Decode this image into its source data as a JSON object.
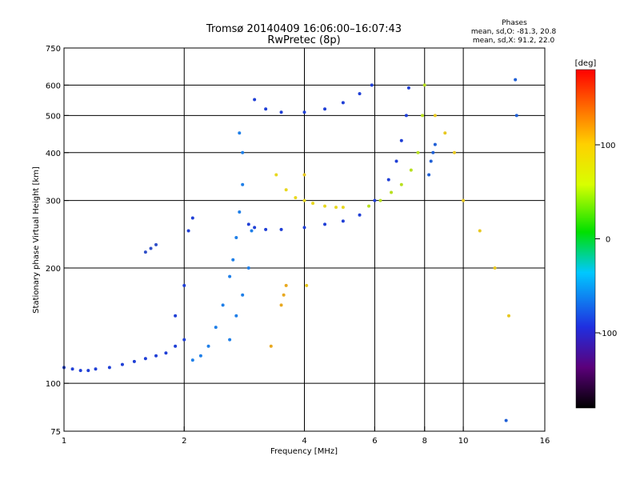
{
  "chart_data": {
    "type": "scatter",
    "title": "Tromsø 20140409 16:06:00–16:07:43",
    "subtitle": "RwPretec (8p)",
    "info": {
      "heading": "Phases",
      "line1": "mean, sd,O: -81.3, 20.8",
      "line2": "mean, sd,X:  91.2, 22.0"
    },
    "xlabel": "Frequency [MHz]",
    "ylabel": "Stationary phase Virtual Height [km]",
    "x_scale": "log",
    "y_scale": "log",
    "xlim": [
      1,
      16
    ],
    "ylim": [
      75,
      750
    ],
    "x_ticks": [
      1,
      2,
      4,
      6,
      8,
      10,
      16
    ],
    "x_tick_labels": [
      "1",
      "2",
      "4",
      "6",
      "8",
      "10",
      "16"
    ],
    "y_ticks": [
      75,
      100,
      200,
      300,
      400,
      500,
      600,
      750
    ],
    "y_tick_labels": [
      "75",
      "100",
      "200",
      "300",
      "400",
      "500",
      "600",
      "750"
    ],
    "grid": true,
    "colorbar": {
      "label": "[deg]",
      "range": [
        -180,
        180
      ],
      "ticks": [
        100,
        0,
        -100
      ],
      "tick_labels": [
        "100",
        "0",
        "-100"
      ]
    },
    "series": [
      {
        "color": "#1f3fd6",
        "phase": -110,
        "x": [
          1.0,
          1.05,
          1.1,
          1.15,
          1.2,
          1.3,
          1.4,
          1.5,
          1.6,
          1.7,
          1.8,
          1.9,
          2.0,
          1.9,
          2.0,
          2.05,
          2.1
        ],
        "y": [
          110,
          109,
          108,
          108,
          109,
          110,
          112,
          114,
          116,
          118,
          120,
          125,
          130,
          150,
          180,
          250,
          270
        ]
      },
      {
        "color": "#1f7fe8",
        "phase": -80,
        "x": [
          2.1,
          2.2,
          2.3,
          2.4,
          2.5,
          2.6,
          2.65,
          2.7,
          2.75,
          2.8,
          2.8,
          2.75
        ],
        "y": [
          115,
          118,
          125,
          140,
          160,
          190,
          210,
          240,
          280,
          330,
          400,
          450
        ]
      },
      {
        "color": "#1f7fe8",
        "phase": -80,
        "x": [
          2.6,
          2.7,
          2.8,
          2.9,
          2.95
        ],
        "y": [
          130,
          150,
          170,
          200,
          250
        ]
      },
      {
        "color": "#2f4fc8",
        "phase": -100,
        "x": [
          1.6,
          1.65,
          1.7
        ],
        "y": [
          220,
          225,
          230
        ]
      },
      {
        "color": "#1f3fd6",
        "phase": -110,
        "x": [
          3.0,
          3.2,
          3.5,
          4.0,
          4.5,
          5.0,
          5.5,
          5.9
        ],
        "y": [
          550,
          520,
          510,
          510,
          520,
          540,
          570,
          600
        ]
      },
      {
        "color": "#1f3fd6",
        "phase": -110,
        "x": [
          2.9,
          3.0,
          3.2,
          3.5,
          4.0,
          4.5,
          5.0,
          5.5,
          6.0,
          6.5,
          6.8,
          7.0,
          7.2,
          7.3
        ],
        "y": [
          260,
          255,
          252,
          252,
          255,
          260,
          265,
          275,
          300,
          340,
          380,
          430,
          500,
          590
        ]
      },
      {
        "color": "#e8d81f",
        "phase": 90,
        "x": [
          3.4,
          3.6,
          3.8,
          4.0,
          4.2,
          4.5,
          4.8,
          5.0
        ],
        "y": [
          350,
          320,
          305,
          300,
          295,
          290,
          288,
          288
        ]
      },
      {
        "color": "#b8e01f",
        "phase": 70,
        "x": [
          5.8,
          6.2,
          6.6,
          7.0,
          7.4,
          7.7,
          7.9,
          8.0
        ],
        "y": [
          290,
          300,
          315,
          330,
          360,
          400,
          500,
          600
        ]
      },
      {
        "color": "#e8a81f",
        "phase": 110,
        "x": [
          3.5,
          3.55,
          3.6,
          3.3
        ],
        "y": [
          160,
          170,
          180,
          125
        ]
      },
      {
        "color": "#e8c81f",
        "phase": 100,
        "x": [
          4.0,
          4.05,
          8.5,
          9.0,
          9.5,
          10.0,
          11.0,
          12.0,
          13.0
        ],
        "y": [
          350,
          180,
          500,
          450,
          400,
          300,
          250,
          200,
          150
        ]
      },
      {
        "color": "#1f5fd6",
        "phase": -100,
        "x": [
          8.2,
          8.3,
          8.4,
          8.5,
          13.5,
          13.6,
          12.8
        ],
        "y": [
          350,
          380,
          400,
          420,
          620,
          500,
          80
        ]
      }
    ]
  }
}
